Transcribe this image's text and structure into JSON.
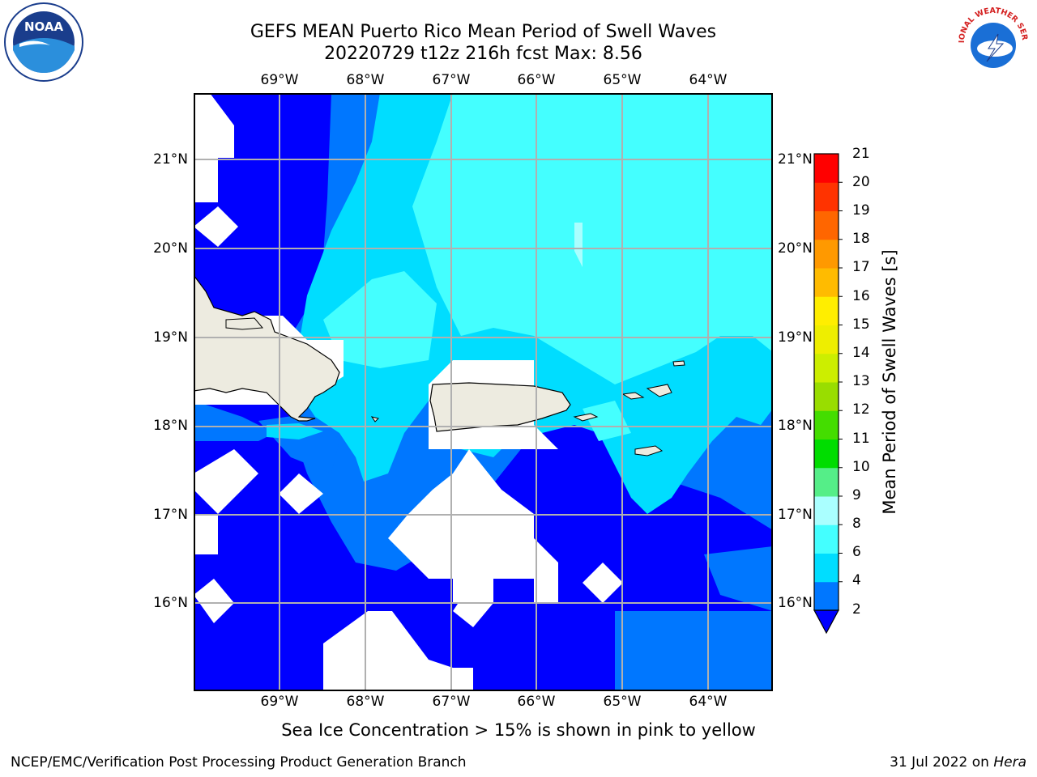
{
  "title": {
    "line1": "GEFS MEAN Puerto Rico Mean Period of Swell Waves",
    "line2": "20220729 t12z 216h fcst   Max: 8.56"
  },
  "logos": {
    "left": "NOAA",
    "right": "NATIONAL WEATHER SERVICE"
  },
  "map": {
    "lon_labels": [
      "69°W",
      "68°W",
      "67°W",
      "66°W",
      "65°W",
      "64°W"
    ],
    "lat_labels": [
      "21°N",
      "20°N",
      "19°N",
      "18°N",
      "17°N",
      "16°N"
    ],
    "lon_range": [
      -70.0,
      -63.25
    ],
    "lat_range": [
      15.0,
      21.75
    ]
  },
  "colorbar": {
    "label": "Mean Period of Swell Waves [s]",
    "ticks": [
      "2",
      "4",
      "6",
      "8",
      "9",
      "10",
      "11",
      "12",
      "13",
      "14",
      "15",
      "16",
      "17",
      "18",
      "19",
      "20",
      "21"
    ],
    "colors": [
      "#0000ff",
      "#0077ff",
      "#00ddff",
      "#44ffff",
      "#aaffff",
      "#55ee88",
      "#00dd00",
      "#44dd00",
      "#99dd00",
      "#ccee00",
      "#eeee00",
      "#ffee00",
      "#ffbb00",
      "#ff9900",
      "#ff6600",
      "#ff3300",
      "#ff0000"
    ],
    "extend": "min"
  },
  "colors": {
    "deep_blue": "#0000ff",
    "mid_blue": "#0077ff",
    "cyan": "#00ddff",
    "light_cyan": "#44ffff",
    "pale_cyan": "#aaffff",
    "land": "#edebe0",
    "missing": "#ffffff"
  },
  "ice_note": "Sea Ice Concentration > 15% is shown in pink to yellow",
  "footer": {
    "left": "NCEP/EMC/Verification Post Processing Product Generation Branch",
    "right_date": "31 Jul 2022 on ",
    "right_system": "Hera"
  }
}
